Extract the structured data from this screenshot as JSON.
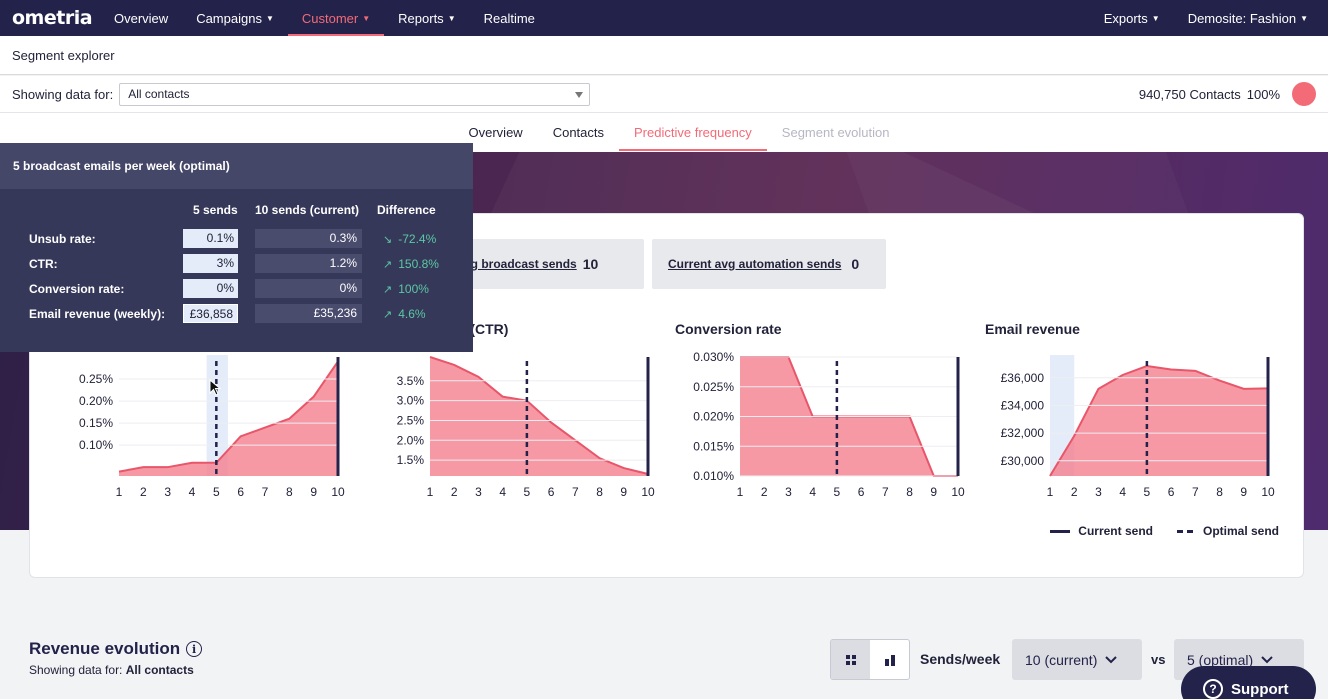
{
  "nav": {
    "logo": "ometria",
    "items": [
      "Overview",
      "Campaigns",
      "Customer",
      "Reports",
      "Realtime"
    ],
    "right": [
      "Exports",
      "Demosite: Fashion"
    ]
  },
  "subheader": {
    "title": "Segment explorer"
  },
  "filter": {
    "label": "Showing data for:",
    "value": "All contacts",
    "contacts": "940,750 Contacts",
    "percent": "100%"
  },
  "tabs": [
    "Overview",
    "Contacts",
    "Predictive frequency",
    "Segment evolution"
  ],
  "stats": {
    "broadcast_label": "t avg broadcast sends",
    "broadcast_value": "10",
    "automation_label": "Current avg automation sends",
    "automation_value": "0"
  },
  "tooltip": {
    "title": "5 broadcast emails per week (optimal)",
    "col1": "5 sends",
    "col2": "10 sends (current)",
    "col3": "Difference",
    "rows": [
      {
        "label": "Unsub rate:",
        "v1": "0.1%",
        "v2": "0.3%",
        "diff": "-72.4%",
        "arrow": "↘"
      },
      {
        "label": "CTR:",
        "v1": "3%",
        "v2": "1.2%",
        "diff": "150.8%",
        "arrow": "↗"
      },
      {
        "label": "Conversion rate:",
        "v1": "0%",
        "v2": "0%",
        "diff": "100%",
        "arrow": "↗"
      },
      {
        "label": "Email revenue (weekly):",
        "v1": "£36,858",
        "v2": "£35,236",
        "diff": "4.6%",
        "arrow": "↗"
      }
    ]
  },
  "colors": {
    "accent": "#f26b77",
    "navy": "#23224a",
    "area": "#f47f8e",
    "positive": "#5bc8a2"
  },
  "chart_data": [
    {
      "type": "area",
      "title": "",
      "x": [
        1,
        2,
        3,
        4,
        5,
        6,
        7,
        8,
        9,
        10
      ],
      "values": [
        0.04,
        0.05,
        0.05,
        0.06,
        0.06,
        0.12,
        0.14,
        0.16,
        0.21,
        0.29
      ],
      "yticks": [
        "0.10%",
        "0.15%",
        "0.20%",
        "0.25%"
      ],
      "ytick_values": [
        0.1,
        0.15,
        0.2,
        0.25
      ],
      "ylim": [
        0.03,
        0.3
      ],
      "current_send": 10,
      "optimal_send": 5
    },
    {
      "type": "area",
      "title": "te (CTR)",
      "x": [
        1,
        2,
        3,
        4,
        5,
        6,
        7,
        8,
        9,
        10
      ],
      "values": [
        4.1,
        3.9,
        3.6,
        3.1,
        3.0,
        2.45,
        2.0,
        1.55,
        1.3,
        1.15
      ],
      "yticks": [
        "1.5%",
        "2.0%",
        "2.5%",
        "3.0%",
        "3.5%"
      ],
      "ytick_values": [
        1.5,
        2.0,
        2.5,
        3.0,
        3.5
      ],
      "ylim": [
        1.1,
        4.1
      ],
      "current_send": 10,
      "optimal_send": 5
    },
    {
      "type": "area",
      "title": "Conversion rate",
      "x": [
        1,
        2,
        3,
        4,
        5,
        6,
        7,
        8,
        9,
        10
      ],
      "values": [
        0.03,
        0.03,
        0.03,
        0.02,
        0.02,
        0.02,
        0.02,
        0.02,
        0.01,
        0.01
      ],
      "yticks": [
        "0.010%",
        "0.015%",
        "0.020%",
        "0.025%",
        "0.030%"
      ],
      "ytick_values": [
        0.01,
        0.015,
        0.02,
        0.025,
        0.03
      ],
      "ylim": [
        0.01,
        0.03
      ],
      "current_send": 10,
      "optimal_send": 5
    },
    {
      "type": "area",
      "title": "Email revenue",
      "x": [
        1,
        2,
        3,
        4,
        5,
        6,
        7,
        8,
        9,
        10
      ],
      "values": [
        28900,
        31800,
        35200,
        36200,
        36850,
        36600,
        36500,
        35800,
        35200,
        35236
      ],
      "yticks": [
        "£30,000",
        "£32,000",
        "£34,000",
        "£36,000"
      ],
      "ytick_values": [
        30000,
        32000,
        34000,
        36000
      ],
      "ylim": [
        28900,
        37500
      ],
      "current_send": 10,
      "optimal_send": 5
    }
  ],
  "legend": {
    "current": "Current send",
    "optimal": "Optimal send"
  },
  "revenue": {
    "title": "Revenue evolution",
    "sub_label": "Showing data for:",
    "sub_value": "All contacts",
    "sends_label": "Sends/week",
    "current": "10 (current)",
    "vs": "vs",
    "optimal": "5 (optimal)"
  },
  "support": "Support"
}
